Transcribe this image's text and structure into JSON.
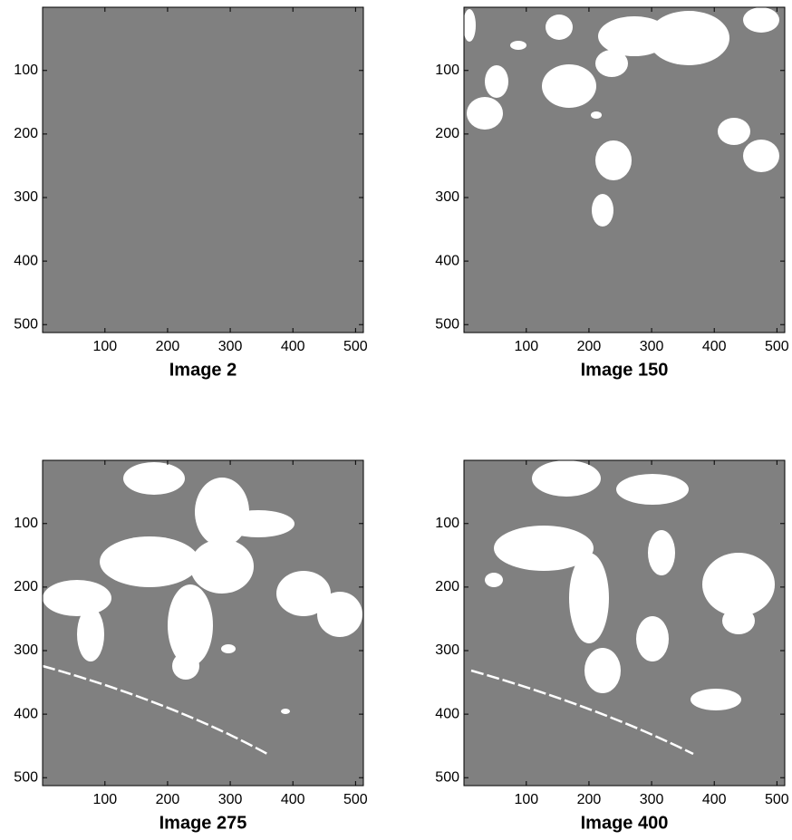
{
  "chart_data": [
    {
      "type": "image",
      "xlabel": "Image 2",
      "color": "#808080",
      "xlim": [
        0.5,
        512.5
      ],
      "ylim": [
        0.5,
        512.5
      ],
      "yreverse": true,
      "xticks": [
        100,
        200,
        300,
        400,
        500
      ],
      "yticks": [
        100,
        200,
        300,
        400,
        500
      ]
    },
    {
      "type": "image",
      "xlabel": "Image 150",
      "color": "#808080",
      "xlim": [
        0.5,
        512.5
      ],
      "ylim": [
        0.5,
        512.5
      ],
      "yreverse": true,
      "xticks": [
        100,
        200,
        300,
        400,
        500
      ],
      "yticks": [
        100,
        200,
        300,
        400,
        500
      ]
    },
    {
      "type": "image",
      "xlabel": "Image 275",
      "color": "#808080",
      "xlim": [
        0.5,
        512.5
      ],
      "ylim": [
        0.5,
        512.5
      ],
      "yreverse": true,
      "xticks": [
        100,
        200,
        300,
        400,
        500
      ],
      "yticks": [
        100,
        200,
        300,
        400,
        500
      ]
    },
    {
      "type": "image",
      "xlabel": "Image 400",
      "color": "#808080",
      "xlim": [
        0.5,
        512.5
      ],
      "ylim": [
        0.5,
        512.5
      ],
      "yreverse": true,
      "xticks": [
        100,
        200,
        300,
        400,
        500
      ],
      "yticks": [
        100,
        200,
        300,
        400,
        500
      ]
    }
  ]
}
